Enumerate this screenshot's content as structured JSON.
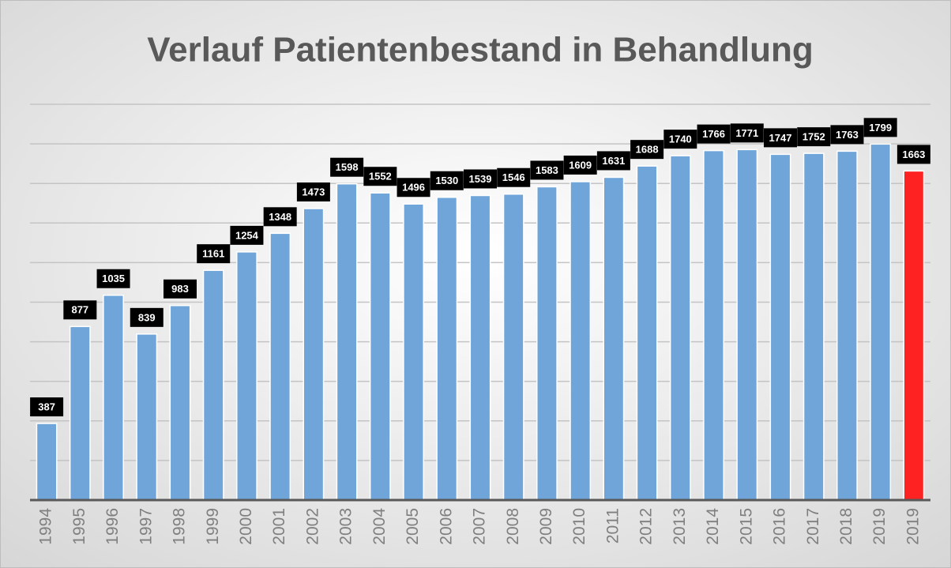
{
  "chart_data": {
    "type": "bar",
    "title": "Verlauf Patientenbestand in Behandlung",
    "categories": [
      "1994",
      "1995",
      "1996",
      "1997",
      "1998",
      "1999",
      "2000",
      "2001",
      "2002",
      "2003",
      "2004",
      "2005",
      "2006",
      "2007",
      "2008",
      "2009",
      "2010",
      "2011",
      "2012",
      "2013",
      "2014",
      "2015",
      "2016",
      "2017",
      "2018",
      "2019",
      "2019"
    ],
    "values": [
      387,
      877,
      1035,
      839,
      983,
      1161,
      1254,
      1348,
      1473,
      1598,
      1552,
      1496,
      1530,
      1539,
      1546,
      1583,
      1609,
      1631,
      1688,
      1740,
      1766,
      1771,
      1747,
      1752,
      1763,
      1799,
      1663
    ],
    "colors": [
      "#6fa5d9",
      "#6fa5d9",
      "#6fa5d9",
      "#6fa5d9",
      "#6fa5d9",
      "#6fa5d9",
      "#6fa5d9",
      "#6fa5d9",
      "#6fa5d9",
      "#6fa5d9",
      "#6fa5d9",
      "#6fa5d9",
      "#6fa5d9",
      "#6fa5d9",
      "#6fa5d9",
      "#6fa5d9",
      "#6fa5d9",
      "#6fa5d9",
      "#6fa5d9",
      "#6fa5d9",
      "#6fa5d9",
      "#6fa5d9",
      "#6fa5d9",
      "#6fa5d9",
      "#6fa5d9",
      "#6fa5d9",
      "#ff2222"
    ],
    "ylim": [
      0,
      2000
    ],
    "yticks": [
      0,
      200,
      400,
      600,
      800,
      1000,
      1200,
      1400,
      1600,
      1800,
      2000
    ],
    "show_ytick_labels": false,
    "grid": true,
    "data_labels": true
  }
}
